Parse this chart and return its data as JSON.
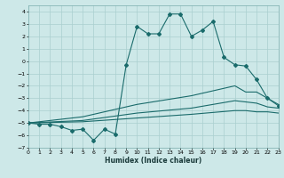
{
  "xlabel": "Humidex (Indice chaleur)",
  "xlim": [
    0,
    23
  ],
  "ylim": [
    -7,
    4.5
  ],
  "yticks": [
    -7,
    -6,
    -5,
    -4,
    -3,
    -2,
    -1,
    0,
    1,
    2,
    3,
    4
  ],
  "xticks": [
    0,
    1,
    2,
    3,
    4,
    5,
    6,
    7,
    8,
    9,
    10,
    11,
    12,
    13,
    14,
    15,
    16,
    17,
    18,
    19,
    20,
    21,
    22,
    23
  ],
  "bg_color": "#cde8e8",
  "line_color": "#1a6b6b",
  "grid_color": "#aacfcf",
  "main": [
    [
      0,
      -5.0
    ],
    [
      1,
      -5.1
    ],
    [
      2,
      -5.1
    ],
    [
      3,
      -5.3
    ],
    [
      4,
      -5.6
    ],
    [
      5,
      -5.5
    ],
    [
      6,
      -6.4
    ],
    [
      7,
      -5.5
    ],
    [
      8,
      -5.9
    ],
    [
      9,
      -0.3
    ],
    [
      10,
      2.8
    ],
    [
      11,
      2.2
    ],
    [
      12,
      2.2
    ],
    [
      13,
      3.8
    ],
    [
      14,
      3.8
    ],
    [
      15,
      2.0
    ],
    [
      16,
      2.5
    ],
    [
      17,
      3.2
    ],
    [
      18,
      0.3
    ],
    [
      19,
      -0.3
    ],
    [
      20,
      -0.4
    ],
    [
      21,
      -1.5
    ],
    [
      22,
      -3.0
    ],
    [
      23,
      -3.6
    ]
  ],
  "upper_band": [
    [
      0,
      -5.0
    ],
    [
      1,
      -4.9
    ],
    [
      5,
      -4.5
    ],
    [
      10,
      -3.5
    ],
    [
      15,
      -2.8
    ],
    [
      19,
      -2.0
    ],
    [
      20,
      -2.5
    ],
    [
      21,
      -2.5
    ],
    [
      22,
      -3.0
    ],
    [
      23,
      -3.5
    ]
  ],
  "mid_band": [
    [
      0,
      -5.0
    ],
    [
      5,
      -4.8
    ],
    [
      10,
      -4.2
    ],
    [
      15,
      -3.8
    ],
    [
      19,
      -3.2
    ],
    [
      20,
      -3.3
    ],
    [
      21,
      -3.4
    ],
    [
      22,
      -3.7
    ],
    [
      23,
      -3.8
    ]
  ],
  "lower_band": [
    [
      0,
      -5.0
    ],
    [
      5,
      -4.9
    ],
    [
      10,
      -4.6
    ],
    [
      15,
      -4.3
    ],
    [
      19,
      -4.0
    ],
    [
      20,
      -4.0
    ],
    [
      21,
      -4.1
    ],
    [
      22,
      -4.1
    ],
    [
      23,
      -4.2
    ]
  ]
}
